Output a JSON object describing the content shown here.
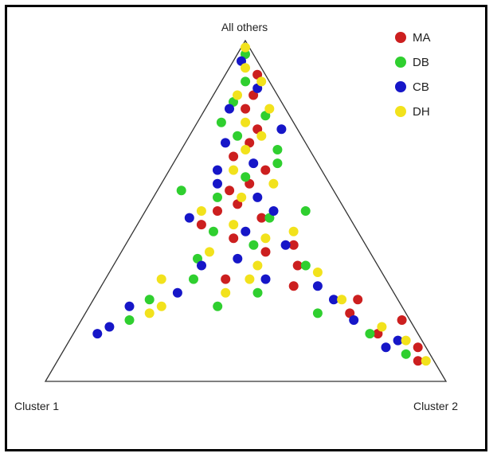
{
  "chart_data": {
    "type": "scatter",
    "subtype": "ternary",
    "vertices": {
      "top": "All others",
      "left": "Cluster 1",
      "right": "Cluster 2"
    },
    "legend_position": "top-right",
    "series": [
      {
        "name": "MA",
        "color": "#cc1f1f",
        "points": [
          [
            0.9,
            0.02,
            0.08
          ],
          [
            0.84,
            0.06,
            0.1
          ],
          [
            0.8,
            0.1,
            0.1
          ],
          [
            0.74,
            0.1,
            0.16
          ],
          [
            0.7,
            0.14,
            0.16
          ],
          [
            0.62,
            0.14,
            0.24
          ],
          [
            0.56,
            0.26,
            0.18
          ],
          [
            0.52,
            0.26,
            0.22
          ],
          [
            0.5,
            0.32,
            0.18
          ],
          [
            0.42,
            0.32,
            0.26
          ],
          [
            0.4,
            0.18,
            0.42
          ],
          [
            0.34,
            0.2,
            0.46
          ],
          [
            0.28,
            0.24,
            0.48
          ],
          [
            0.2,
            0.14,
            0.66
          ],
          [
            0.14,
            0.1,
            0.76
          ],
          [
            0.18,
            0.02,
            0.8
          ],
          [
            0.1,
            0.02,
            0.88
          ],
          [
            0.06,
            0.04,
            0.9
          ],
          [
            0.66,
            0.2,
            0.14
          ],
          [
            0.46,
            0.38,
            0.16
          ],
          [
            0.38,
            0.26,
            0.36
          ],
          [
            0.3,
            0.4,
            0.3
          ],
          [
            0.58,
            0.2,
            0.22
          ],
          [
            0.24,
            0.1,
            0.66
          ],
          [
            0.48,
            0.22,
            0.3
          ]
        ]
      },
      {
        "name": "DB",
        "color": "#2fcf2f",
        "points": [
          [
            0.96,
            0.02,
            0.02
          ],
          [
            0.88,
            0.06,
            0.06
          ],
          [
            0.82,
            0.12,
            0.06
          ],
          [
            0.78,
            0.06,
            0.16
          ],
          [
            0.72,
            0.16,
            0.12
          ],
          [
            0.68,
            0.08,
            0.24
          ],
          [
            0.6,
            0.2,
            0.2
          ],
          [
            0.54,
            0.3,
            0.16
          ],
          [
            0.48,
            0.2,
            0.32
          ],
          [
            0.44,
            0.36,
            0.2
          ],
          [
            0.4,
            0.28,
            0.32
          ],
          [
            0.36,
            0.44,
            0.2
          ],
          [
            0.3,
            0.48,
            0.22
          ],
          [
            0.26,
            0.34,
            0.4
          ],
          [
            0.24,
            0.62,
            0.14
          ],
          [
            0.18,
            0.7,
            0.12
          ],
          [
            0.22,
            0.46,
            0.32
          ],
          [
            0.2,
            0.22,
            0.58
          ],
          [
            0.14,
            0.12,
            0.74
          ],
          [
            0.08,
            0.06,
            0.86
          ],
          [
            0.64,
            0.1,
            0.26
          ],
          [
            0.5,
            0.1,
            0.4
          ],
          [
            0.56,
            0.38,
            0.06
          ],
          [
            0.34,
            0.18,
            0.48
          ],
          [
            0.76,
            0.18,
            0.06
          ]
        ]
      },
      {
        "name": "CB",
        "color": "#1616c8",
        "points": [
          [
            0.94,
            0.04,
            0.02
          ],
          [
            0.86,
            0.04,
            0.1
          ],
          [
            0.8,
            0.14,
            0.06
          ],
          [
            0.74,
            0.04,
            0.22
          ],
          [
            0.7,
            0.2,
            0.1
          ],
          [
            0.64,
            0.16,
            0.2
          ],
          [
            0.58,
            0.28,
            0.14
          ],
          [
            0.54,
            0.2,
            0.26
          ],
          [
            0.48,
            0.4,
            0.12
          ],
          [
            0.44,
            0.28,
            0.28
          ],
          [
            0.4,
            0.2,
            0.4
          ],
          [
            0.34,
            0.44,
            0.22
          ],
          [
            0.3,
            0.3,
            0.4
          ],
          [
            0.26,
            0.54,
            0.2
          ],
          [
            0.22,
            0.68,
            0.1
          ],
          [
            0.16,
            0.76,
            0.08
          ],
          [
            0.14,
            0.8,
            0.06
          ],
          [
            0.28,
            0.18,
            0.54
          ],
          [
            0.24,
            0.16,
            0.6
          ],
          [
            0.18,
            0.14,
            0.68
          ],
          [
            0.12,
            0.06,
            0.82
          ],
          [
            0.1,
            0.1,
            0.8
          ],
          [
            0.36,
            0.34,
            0.3
          ],
          [
            0.5,
            0.18,
            0.32
          ],
          [
            0.62,
            0.26,
            0.12
          ]
        ]
      },
      {
        "name": "DH",
        "color": "#f2e21c",
        "points": [
          [
            0.98,
            0.01,
            0.01
          ],
          [
            0.92,
            0.04,
            0.04
          ],
          [
            0.88,
            0.02,
            0.1
          ],
          [
            0.84,
            0.1,
            0.06
          ],
          [
            0.8,
            0.04,
            0.16
          ],
          [
            0.76,
            0.12,
            0.12
          ],
          [
            0.72,
            0.1,
            0.18
          ],
          [
            0.68,
            0.16,
            0.16
          ],
          [
            0.62,
            0.22,
            0.16
          ],
          [
            0.58,
            0.14,
            0.28
          ],
          [
            0.54,
            0.24,
            0.22
          ],
          [
            0.5,
            0.36,
            0.14
          ],
          [
            0.46,
            0.3,
            0.24
          ],
          [
            0.42,
            0.24,
            0.34
          ],
          [
            0.38,
            0.4,
            0.22
          ],
          [
            0.34,
            0.3,
            0.36
          ],
          [
            0.3,
            0.56,
            0.14
          ],
          [
            0.26,
            0.42,
            0.32
          ],
          [
            0.22,
            0.6,
            0.18
          ],
          [
            0.2,
            0.64,
            0.16
          ],
          [
            0.32,
            0.16,
            0.52
          ],
          [
            0.24,
            0.14,
            0.62
          ],
          [
            0.16,
            0.08,
            0.76
          ],
          [
            0.12,
            0.04,
            0.84
          ],
          [
            0.06,
            0.02,
            0.92
          ],
          [
            0.3,
            0.34,
            0.36
          ],
          [
            0.44,
            0.16,
            0.4
          ]
        ]
      }
    ]
  }
}
